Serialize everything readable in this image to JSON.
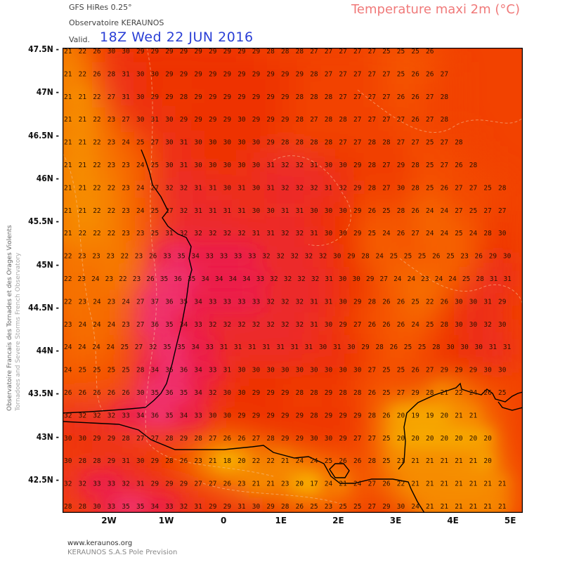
{
  "header": {
    "model": "GFS HiRes 0.25°",
    "observatory": "Observatoire KERAUNOS",
    "valid_label": "Valid.",
    "valid_time": "18Z Wed 22 JUN 2016",
    "title": "Temperature maxi 2m (°C)"
  },
  "side_credit": {
    "line1": "Observatoire Francais des Tornades et des Orages Violents",
    "line2": "Tornadoes and Severe Storms French Observatory"
  },
  "footer": {
    "url": "www.keraunos.org",
    "company": "KERAUNOS S.A.S Pole Prevision"
  },
  "axes": {
    "y_ticks": [
      "47.5N",
      "47N",
      "46.5N",
      "46N",
      "45.5N",
      "45N",
      "44.5N",
      "44N",
      "43.5N",
      "43N",
      "42.5N"
    ],
    "x_ticks": [
      "2W",
      "1W",
      "0",
      "1E",
      "2E",
      "3E",
      "4E",
      "5E"
    ]
  },
  "colors": {
    "t18": "#f9c000",
    "t20": "#f7a800",
    "t22": "#f68c00",
    "t24": "#f66d00",
    "t26": "#f55500",
    "t28": "#f24200",
    "t30": "#ee3200",
    "t32": "#ec2a2a",
    "t34": "#ec1f4a",
    "t36": "#f0306e",
    "coast": "#000000",
    "contour": "#f3c8a0"
  },
  "grid_values": [
    "21 22 26 30 30 29 29 29 29 29 29 29 29 29 28 28 28 27 27 27 27 27 25 25 25 26",
    "21 22 26 28 31 30 30 29 29 29 29 29 29 29 29 29 29 28 27 27 27 27 27 25 26 26 27",
    "21 21 22 27 31 30 29 29 28 29 29 29 29 29 29 29 28 28 28 27 27 27 27 26 26 27 28",
    "21 21 22 23 27 30 31 30 29 29 29 29 30 29 29 29 28 27 28 28 27 27 27 27 26 27 28",
    "21 21 22 23 24 25 27 30 31 30 30 30 30 30 29 28 28 28 28 27 27 28 28 27 27 25 27 28",
    "21 21 22 23 23 24 25 30 31 30 30 30 30 30 31 32 32 31 30 30 29 28 27 29 28 25 27 26 28",
    "21 21 22 22 23 24 27 32 32 31 31 30 31 30 31 32 32 32 31 32 29 28 27 30 28 25 26 27 27 25 28",
    "21 21 22 22 23 24 25 27 32 31 31 31 31 30 30 31 31 30 30 30 29 26 25 28 26 24 24 27 25 27 27",
    "21 22 22 22 23 23 25 31 32 32 32 32 32 31 31 32 32 31 30 30 29 25 24 26 27 24 24 25 24 28 30",
    "22 23 23 23 22 23 26 33 35 34 33 33 33 33 32 32 32 32 32 30 29 28 24 25 25 25 26 25 23 26 29 30",
    "22 23 24 23 22 23 26 35 36 35 34 34 34 34 33 32 32 32 32 31 30 30 29 27 24 24 23 24 24 25 28 31 31",
    "22 23 24 23 24 27 37 36 35 34 33 33 33 33 32 32 32 31 31 30 29 28 26 26 25 22 26 30 30 31 29",
    "23 24 24 24 23 27 36 35 34 33 32 32 32 32 32 32 32 31 30 29 27 26 26 26 24 25 28 30 30 32 30",
    "24 24 24 24 25 27 32 35 35 34 33 31 31 31 31 31 31 31 30 31 30 29 28 26 25 25 28 30 30 30 31 31",
    "24 25 25 25 25 28 34 36 36 34 33 31 30 30 30 30 30 30 30 30 30 27 25 25 26 27 29 29 29 30 30",
    "26 26 26 26 26 30 35 36 35 34 32 30 30 29 29 29 28 28 29 28 28 26 25 27 29 28 21 22 24 26 25",
    "32 32 32 32 33 34 36 35 34 33 30 30 29 29 29 29 29 28 29 29 29 28 26 20 19 19 20 21 21",
    "30 30 29 29 28 27 27 28 29 28 27 26 26 27 28 29 29 30 30 29 27 27 25 20 20 20 20 20 20 20",
    "30 28 28 29 31 30 29 28 26 23 21 18 20 22 22 21 24 24 25 26 26 28 25 21 21 21 21 21 21 20",
    "32 32 33 33 32 31 29 29 29 27 27 26 23 21 21 23 20 17 24 21 24 27 26 22 21 21 21 21 21 21 21",
    "28 28 30 33 35 35 34 33 32 31 29 29 31 30 29 28 26 25 23 25 25 27 29 30 24 21 21 21 21 21 21"
  ]
}
